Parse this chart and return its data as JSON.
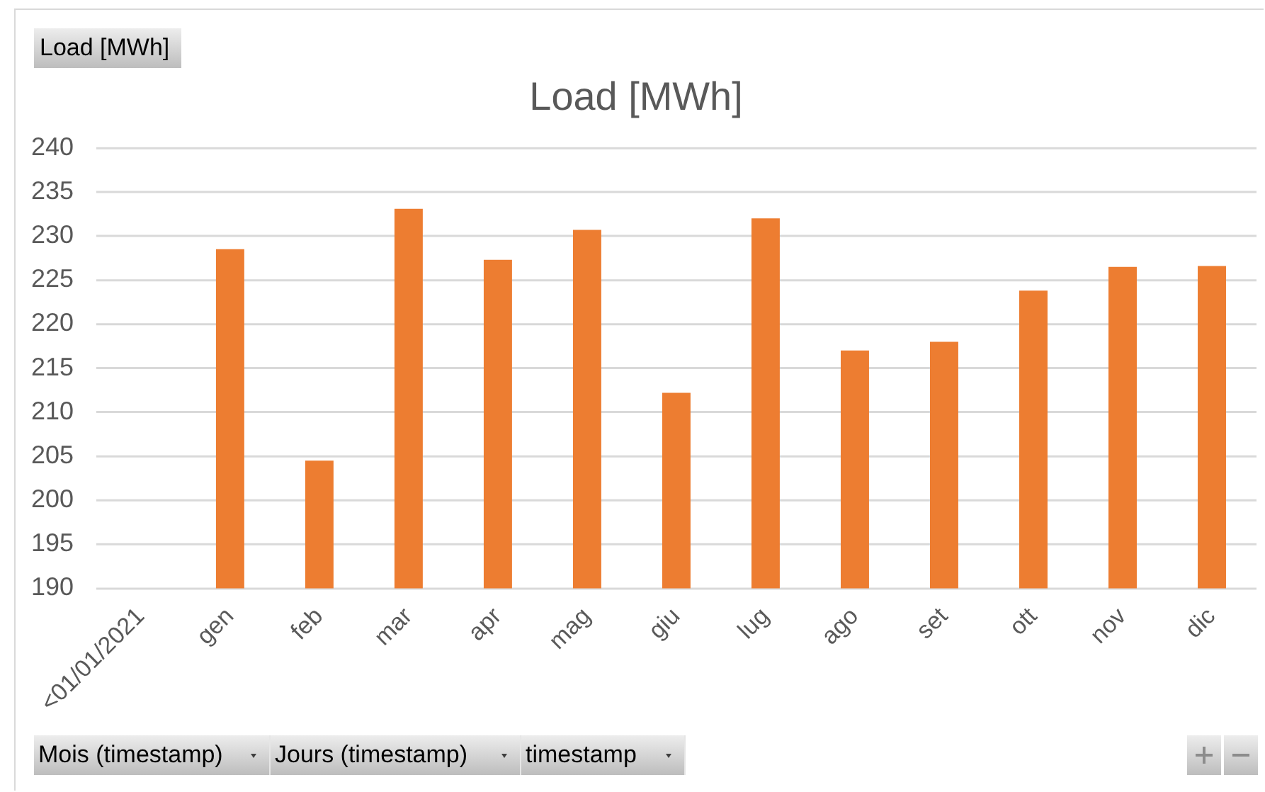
{
  "chart_data": {
    "type": "bar",
    "title": "Load [MWh]",
    "categories": [
      "<01/01/2021",
      "gen",
      "feb",
      "mar",
      "apr",
      "mag",
      "giu",
      "lug",
      "ago",
      "set",
      "ott",
      "nov",
      "dic"
    ],
    "values": [
      null,
      228.5,
      204.5,
      233.1,
      227.3,
      230.7,
      212.2,
      232.0,
      217.0,
      218.0,
      223.8,
      226.5,
      226.6
    ],
    "color": "#ed7d31",
    "ylim": [
      190,
      240
    ],
    "yticks": [
      190,
      195,
      200,
      205,
      210,
      215,
      220,
      225,
      230,
      235,
      240
    ],
    "grid": "y",
    "annotations": [
      "Load [MWh]",
      "Mois (timestamp)",
      "Jours (timestamp)",
      "timestamp"
    ]
  }
}
